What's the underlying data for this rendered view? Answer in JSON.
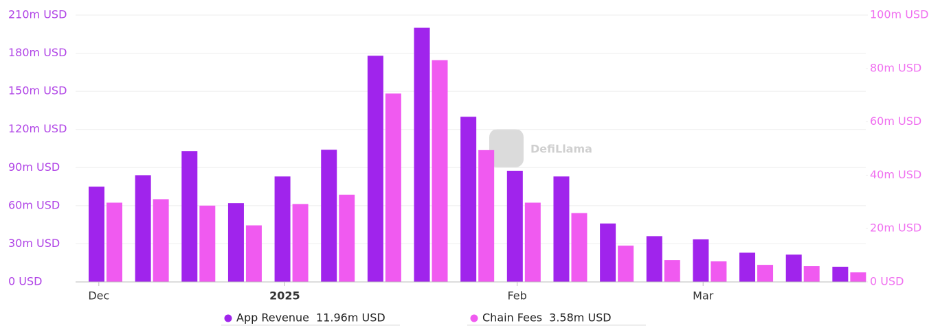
{
  "chart_data": {
    "type": "bar",
    "watermark": "DefiLlama",
    "categories": [
      "Dec",
      null,
      null,
      null,
      "2025",
      null,
      null,
      null,
      null,
      "Feb",
      null,
      null,
      null,
      "Mar",
      null,
      null,
      null
    ],
    "series": [
      {
        "name": "App Revenue",
        "legend_label": "11.96m USD",
        "color": "#a024ec",
        "axis": "y",
        "values": [
          75,
          84,
          103,
          62,
          83,
          104,
          178,
          200,
          130,
          87.5,
          83,
          46,
          36,
          33.5,
          23,
          21.5,
          11.96
        ]
      },
      {
        "name": "Chain Fees",
        "legend_label": "3.58m USD",
        "color": "#f05af0",
        "axis": "y2",
        "values": [
          29.7,
          31,
          28.6,
          21.2,
          29.2,
          32.7,
          70.6,
          83.1,
          49.4,
          29.7,
          25.8,
          13.6,
          8.2,
          7.7,
          6.4,
          5.9,
          3.58
        ]
      }
    ],
    "ylim": [
      0,
      210
    ],
    "yticks": [
      {
        "value": 0,
        "label": "0 USD"
      },
      {
        "value": 30,
        "label": "30m USD"
      },
      {
        "value": 60,
        "label": "60m USD"
      },
      {
        "value": 90,
        "label": "90m USD"
      },
      {
        "value": 120,
        "label": "120m USD"
      },
      {
        "value": 150,
        "label": "150m USD"
      },
      {
        "value": 180,
        "label": "180m USD"
      },
      {
        "value": 210,
        "label": "210m USD"
      }
    ],
    "y2lim": [
      0,
      100
    ],
    "y2ticks": [
      {
        "value": 0,
        "label": "0 USD"
      },
      {
        "value": 20,
        "label": "20m USD"
      },
      {
        "value": 40,
        "label": "40m USD"
      },
      {
        "value": 60,
        "label": "60m USD"
      },
      {
        "value": 80,
        "label": "80m USD"
      },
      {
        "value": 100,
        "label": "100m USD"
      }
    ],
    "grid": true
  }
}
